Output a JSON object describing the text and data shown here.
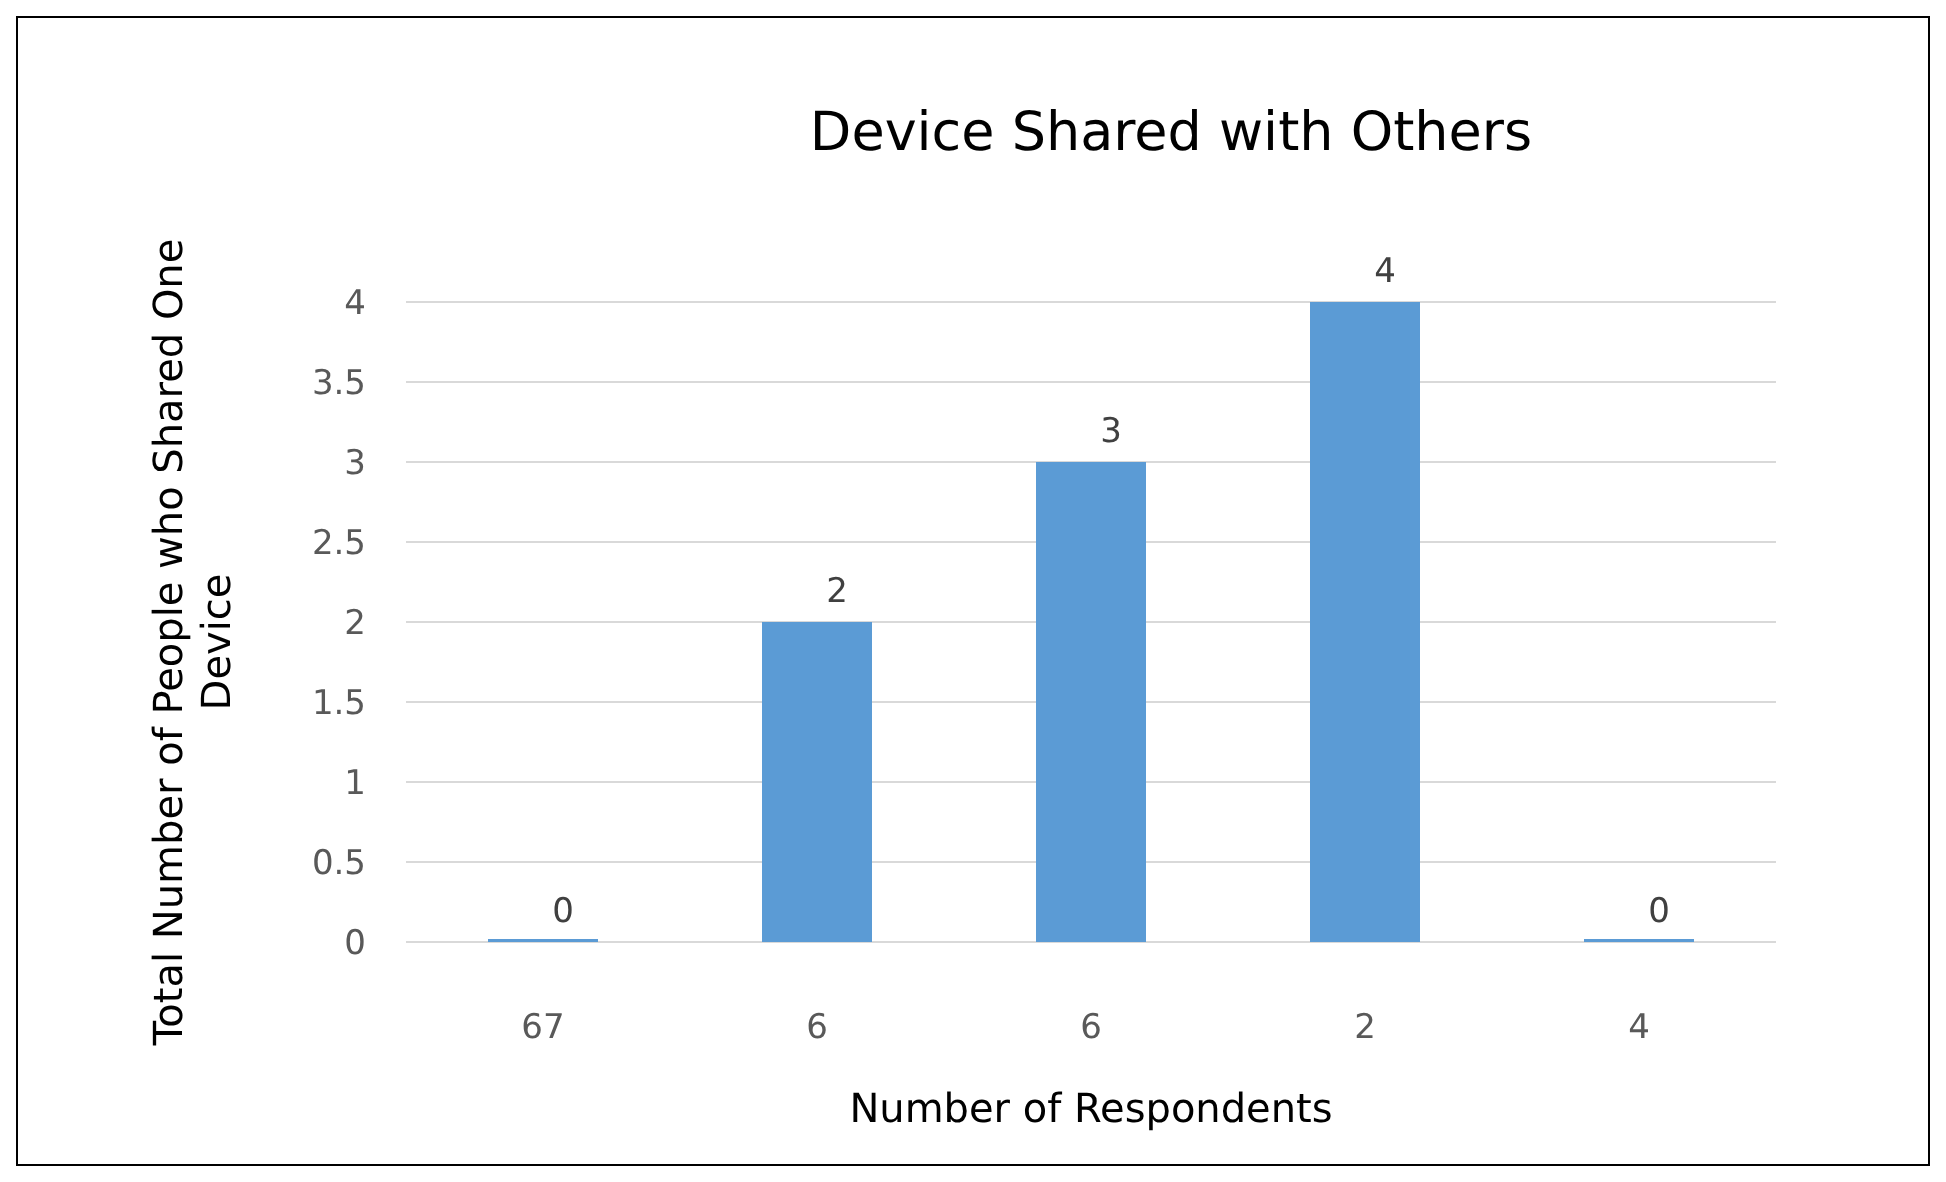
{
  "chart_data": {
    "type": "bar",
    "title": "Device Shared with Others",
    "xlabel": "Number of Respondents",
    "ylabel": "Total Number of People who Shared One Device",
    "categories": [
      "67",
      "6",
      "6",
      "2",
      "4"
    ],
    "values": [
      0,
      2,
      3,
      4,
      0
    ],
    "color": "#5b9bd5",
    "ylim": [
      0,
      4
    ],
    "yticks": [
      0,
      0.5,
      1,
      1.5,
      2,
      2.5,
      3,
      3.5,
      4
    ],
    "grid": "y",
    "data_labels": true
  }
}
